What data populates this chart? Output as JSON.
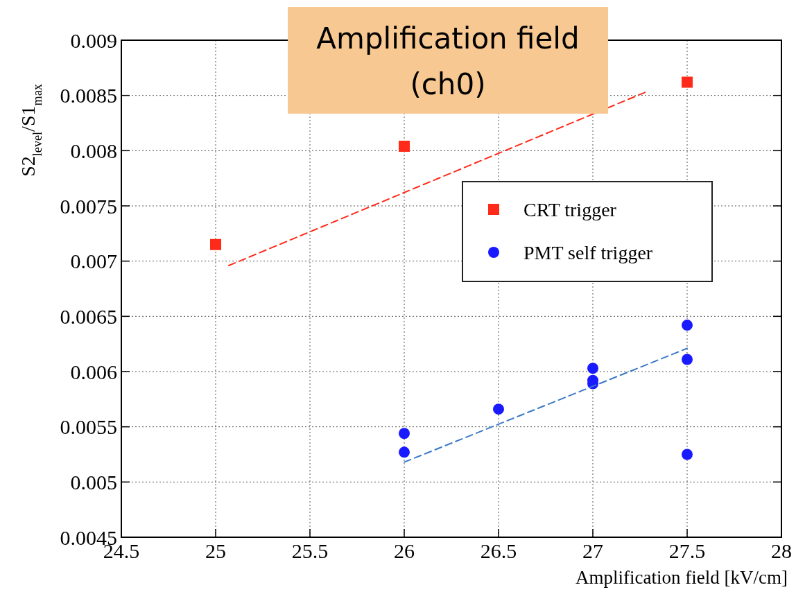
{
  "chart_data": {
    "type": "scatter",
    "title": "Amplification field\n(ch0)",
    "xlabel": "Amplification field [kV/cm]",
    "ylabel": "S2$_{level}$/S1$_{max}$",
    "xlim": [
      24.5,
      28
    ],
    "xticks": [
      24.5,
      25,
      25.5,
      26,
      26.5,
      27,
      27.5,
      28
    ],
    "ylim": [
      0.0045,
      0.009
    ],
    "yticks": [
      0.0045,
      0.005,
      0.0055,
      0.006,
      0.0065,
      0.007,
      0.0075,
      0.008,
      0.0085,
      0.009
    ],
    "grid": true,
    "legend": "right",
    "series": [
      {
        "name": "CRT trigger",
        "color": "#ff2a1a",
        "marker": "square",
        "x": [
          25,
          26,
          27.5
        ],
        "values": [
          0.00715,
          0.00804,
          0.00862
        ]
      },
      {
        "name": "PMT self trigger",
        "color": "#1a1aff",
        "marker": "circle",
        "x": [
          26,
          26,
          26.5,
          27,
          27,
          27,
          27.5,
          27.5,
          27.5
        ],
        "values": [
          0.00544,
          0.00527,
          0.00566,
          0.00603,
          0.00592,
          0.00589,
          0.00642,
          0.00611,
          0.00525
        ]
      },
      {
        "type": "line",
        "color": "#ff2a1a",
        "marker": "none",
        "line_style": "dashed",
        "x": [
          25.07,
          27.28
        ],
        "values": [
          0.00696,
          0.00853
        ]
      },
      {
        "type": "line",
        "color": "#3a78c8",
        "marker": "none",
        "line_style": "dashed",
        "x": [
          26,
          27.5
        ],
        "values": [
          0.00518,
          0.00621
        ]
      }
    ]
  }
}
